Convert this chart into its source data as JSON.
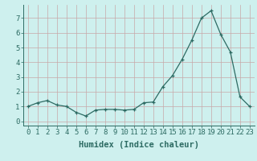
{
  "x_vals": [
    0,
    1,
    2,
    3,
    4,
    5,
    6,
    7,
    8,
    9,
    10,
    11,
    12,
    13,
    14,
    15,
    16,
    17,
    18,
    19,
    20,
    21,
    22,
    23
  ],
  "y_vals": [
    1.0,
    1.25,
    1.4,
    1.1,
    1.0,
    0.6,
    0.35,
    0.75,
    0.8,
    0.8,
    0.75,
    0.8,
    1.25,
    1.3,
    2.35,
    3.1,
    4.2,
    5.5,
    7.0,
    7.5,
    5.9,
    4.7,
    1.65,
    1.0
  ],
  "x_labels": [
    "0",
    "1",
    "2",
    "3",
    "4",
    "5",
    "6",
    "7",
    "8",
    "9",
    "10",
    "11",
    "12",
    "13",
    "14",
    "15",
    "16",
    "17",
    "18",
    "19",
    "20",
    "21",
    "22",
    "23"
  ],
  "y_ticks": [
    0,
    1,
    2,
    3,
    4,
    5,
    6,
    7
  ],
  "y_labels": [
    "0",
    "1",
    "2",
    "3",
    "4",
    "5",
    "6",
    "7"
  ],
  "xlabel": "Humidex (Indice chaleur)",
  "ylim": [
    -0.3,
    7.9
  ],
  "xlim": [
    -0.5,
    23.5
  ],
  "line_color": "#2d6b63",
  "marker": "+",
  "bg_color": "#cef0ee",
  "grid_color": "#c8a8a8",
  "tick_fontsize": 6.5,
  "xlabel_fontsize": 7.5
}
